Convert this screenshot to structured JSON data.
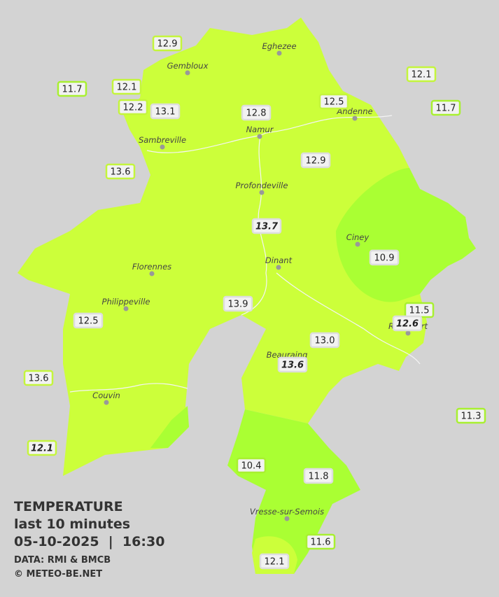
{
  "legend": {
    "title": "TEMPERATURE",
    "period": "last 10 minutes",
    "datetime": "05-10-2025  |  16:30",
    "source": "DATA: RMI & BMCB",
    "copyright": "© METEO-BE.NET"
  },
  "towns": [
    {
      "name": "Eghezee"
    },
    {
      "name": "Gembloux"
    },
    {
      "name": "Andenne"
    },
    {
      "name": "Namur"
    },
    {
      "name": "Sambreville"
    },
    {
      "name": "Profondeville"
    },
    {
      "name": "Ciney"
    },
    {
      "name": "Dinant"
    },
    {
      "name": "Florennes"
    },
    {
      "name": "Philippeville"
    },
    {
      "name": "Rochefort"
    },
    {
      "name": "Beauraing"
    },
    {
      "name": "Couvin"
    },
    {
      "name": "Vresse-sur-Semois"
    }
  ],
  "stations": [
    {
      "value": "12.9",
      "border": "#c4f53c",
      "italic": false
    },
    {
      "value": "11.7",
      "border": "#a8f030",
      "italic": false
    },
    {
      "value": "12.1",
      "border": "#c4f53c",
      "italic": false
    },
    {
      "value": "12.2",
      "border": "#c4f53c",
      "italic": false
    },
    {
      "value": "13.1",
      "border": "#dddddd",
      "italic": false
    },
    {
      "value": "12.8",
      "border": "#dddddd",
      "italic": false
    },
    {
      "value": "12.5",
      "border": "#c4f53c",
      "italic": false
    },
    {
      "value": "12.1",
      "border": "#c4f53c",
      "italic": false
    },
    {
      "value": "11.7",
      "border": "#a8f030",
      "italic": false
    },
    {
      "value": "13.6",
      "border": "#c4f53c",
      "italic": false
    },
    {
      "value": "12.9",
      "border": "#dddddd",
      "italic": false
    },
    {
      "value": "13.7",
      "border": "#dddddd",
      "italic": true
    },
    {
      "value": "10.9",
      "border": "#dddddd",
      "italic": false
    },
    {
      "value": "13.9",
      "border": "#dddddd",
      "italic": false
    },
    {
      "value": "11.5",
      "border": "#a8f030",
      "italic": false
    },
    {
      "value": "12.6",
      "border": "#dddddd",
      "italic": true
    },
    {
      "value": "12.5",
      "border": "#dddddd",
      "italic": false
    },
    {
      "value": "13.0",
      "border": "#dddddd",
      "italic": false
    },
    {
      "value": "13.6",
      "border": "#dddddd",
      "italic": true
    },
    {
      "value": "13.6",
      "border": "#c4f53c",
      "italic": false
    },
    {
      "value": "11.3",
      "border": "#a8f030",
      "italic": false
    },
    {
      "value": "12.1",
      "border": "#c4f53c",
      "italic": true
    },
    {
      "value": "10.4",
      "border": "#a8f030",
      "italic": false
    },
    {
      "value": "11.8",
      "border": "#dddddd",
      "italic": false
    },
    {
      "value": "11.6",
      "border": "#a8f030",
      "italic": false
    },
    {
      "value": "12.1",
      "border": "#dddddd",
      "italic": false
    }
  ]
}
